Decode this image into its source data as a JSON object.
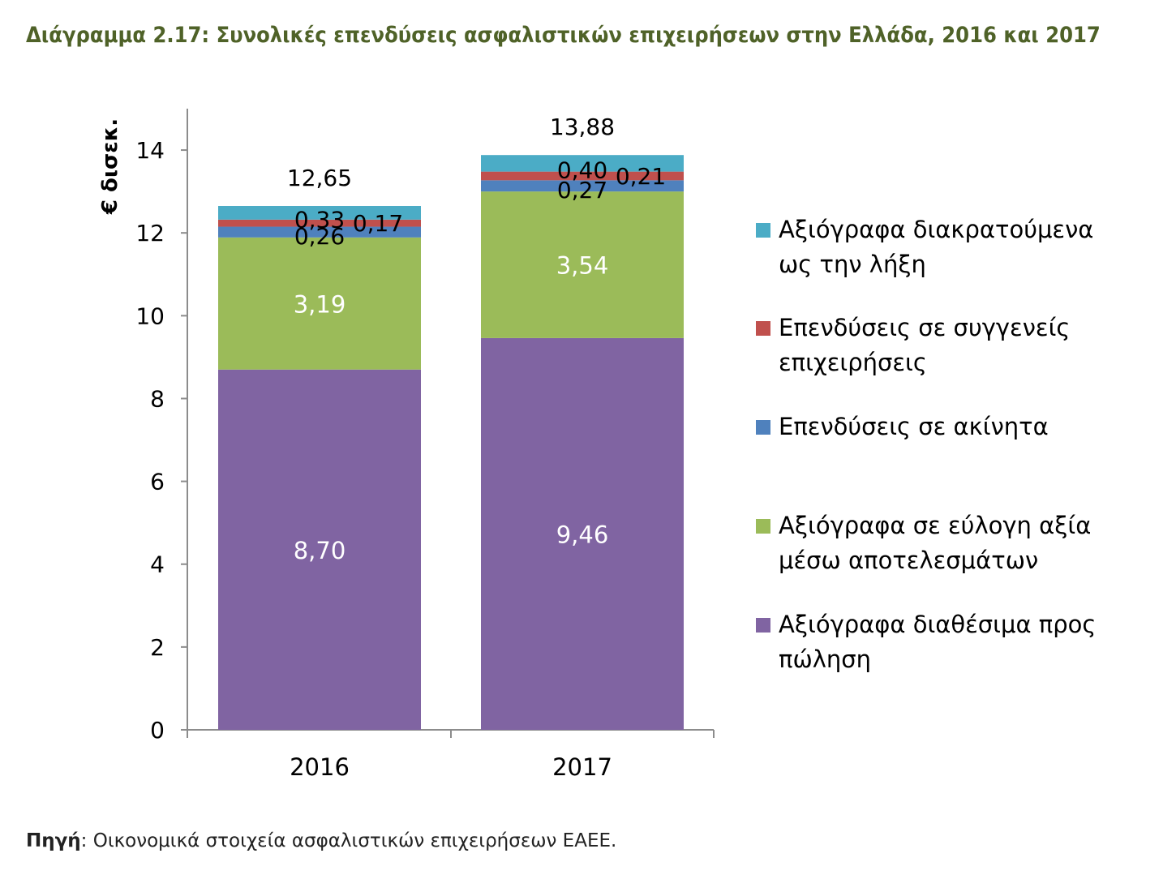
{
  "title": "Διάγραμμα 2.17: Συνολικές επενδύσεις ασφαλιστικών επιχειρήσεων στην Ελλάδα, 2016 και 2017",
  "source": {
    "label": "Πηγή",
    "text": ": Οικονομικά στοιχεία ασφαλιστικών επιχειρήσεων ΕΑΕΕ."
  },
  "chart_data": {
    "type": "bar",
    "stacked": true,
    "title": "",
    "xlabel": "",
    "ylabel": "€ δισεκ.",
    "ylim": [
      0,
      15
    ],
    "yticks": [
      0,
      2,
      4,
      6,
      8,
      10,
      12,
      14
    ],
    "grid": false,
    "legend_position": "right",
    "categories": [
      "2016",
      "2017"
    ],
    "totals": [
      12.65,
      13.88
    ],
    "total_labels": [
      "12,65",
      "13,88"
    ],
    "series": [
      {
        "name": "Αξιόγραφα διαθέσιμα προς πώληση",
        "legend_lines": [
          "Αξιόγραφα διαθέσιμα προς",
          "πώληση"
        ],
        "color": "#8064a2",
        "values": [
          8.7,
          9.46
        ],
        "labels": [
          "8,70",
          "9,46"
        ],
        "label_color": "#ffffff"
      },
      {
        "name": "Αξιόγραφα σε εύλογη αξία μέσω αποτελεσμάτων",
        "legend_lines": [
          "Αξιόγραφα σε εύλογη αξία",
          "μέσω αποτελεσμάτων"
        ],
        "color": "#9bbb59",
        "values": [
          3.19,
          3.54
        ],
        "labels": [
          "3,19",
          "3,54"
        ],
        "label_color": "#ffffff"
      },
      {
        "name": "Επενδύσεις σε ακίνητα",
        "legend_lines": [
          "Επενδύσεις σε ακίνητα"
        ],
        "color": "#4f81bd",
        "values": [
          0.26,
          0.27
        ],
        "labels": [
          "0,26",
          "0,27"
        ],
        "label_color": "#000000"
      },
      {
        "name": "Επενδύσεις σε συγγενείς επιχειρήσεις",
        "legend_lines": [
          "Επενδύσεις σε συγγενείς",
          "επιχειρήσεις"
        ],
        "color": "#c0504d",
        "values": [
          0.17,
          0.21
        ],
        "labels": [
          "0,17",
          "0,21"
        ],
        "label_color": "#000000"
      },
      {
        "name": "Αξιόγραφα διακρατούμενα ως την λήξη",
        "legend_lines": [
          "Αξιόγραφα διακρατούμενα",
          "ως την λήξη"
        ],
        "color": "#4bacc6",
        "values": [
          0.33,
          0.4
        ],
        "labels": [
          "0,33",
          "0,40"
        ],
        "label_color": "#000000"
      }
    ]
  }
}
